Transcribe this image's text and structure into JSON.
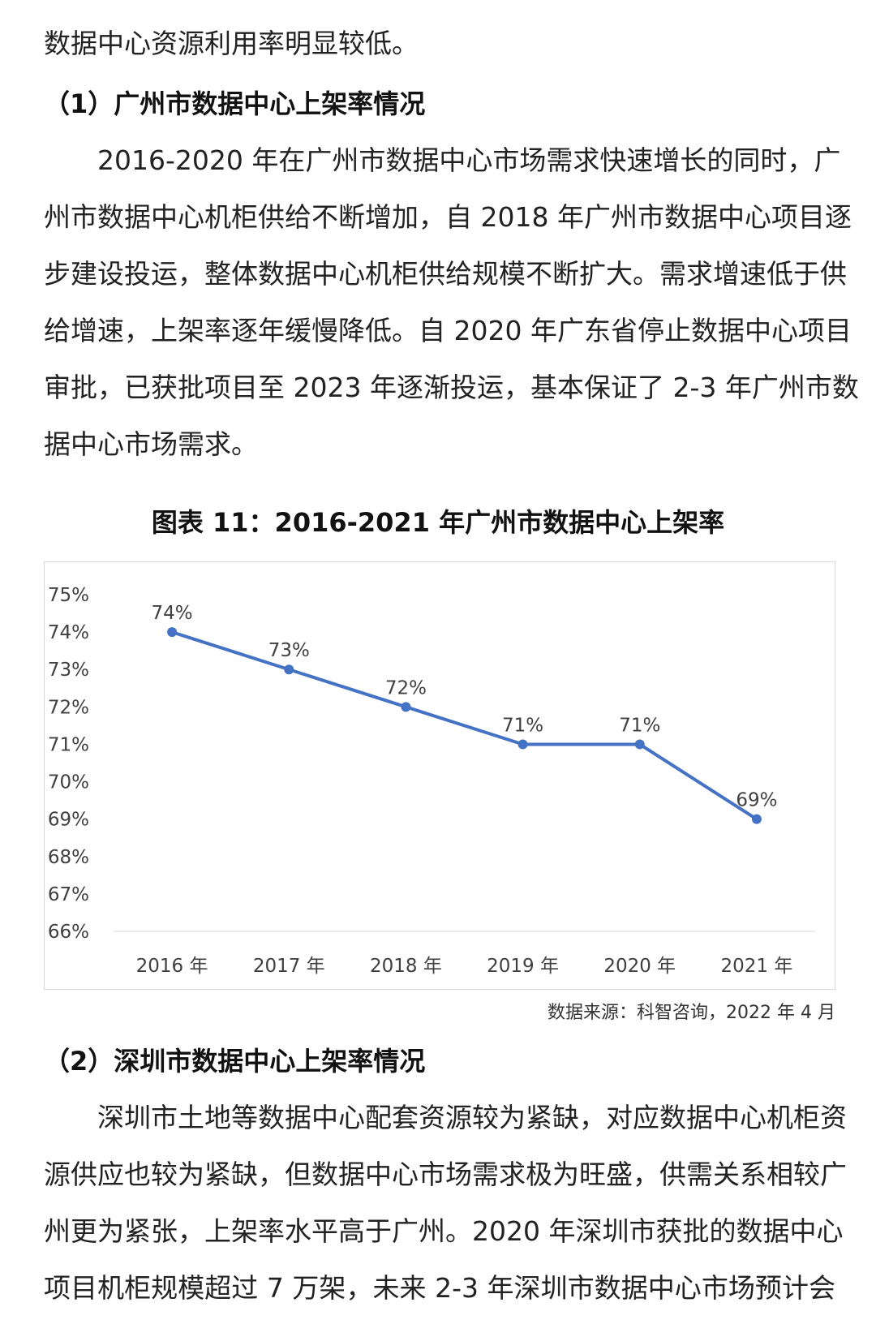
{
  "paragraphs": {
    "p0": [
      "数据中心资源利用率明显较低。"
    ],
    "h1": "（1）广州市数据中心上架率情况",
    "p1": [
      "　　2016-2020 年在广州市数据中心市场需求快速增长的同时，广",
      "州市数据中心机柜供给不断增加，自 2018 年广州市数据中心项目逐",
      "步建设投运，整体数据中心机柜供给规模不断扩大。需求增速低于供",
      "给增速，上架率逐年缓慢降低。自 2020 年广东省停止数据中心项目",
      "审批，已获批项目至 2023 年逐渐投运，基本保证了 2-3 年广州市数",
      "据中心市场需求。"
    ],
    "h2": "（2）深圳市数据中心上架率情况",
    "p2": [
      "　　深圳市土地等数据中心配套资源较为紧缺，对应数据中心机柜资",
      "源供应也较为紧缺，但数据中心市场需求极为旺盛，供需关系相较广",
      "州更为紧张，上架率水平高于广州。2020 年深圳市获批的数据中心",
      "项目机柜规模超过 7 万架，未来 2-3 年深圳市数据中心市场预计会"
    ]
  },
  "chart_title": "图表 11：2016-2021 年广州市数据中心上架率",
  "source_note": "数据来源：科智咨询，2022 年 4 月",
  "chart_data": {
    "type": "line",
    "title": "图表 11：2016-2021 年广州市数据中心上架率",
    "categories": [
      "2016 年",
      "2017 年",
      "2018 年",
      "2019 年",
      "2020 年",
      "2021 年"
    ],
    "series": [
      {
        "values": [
          74,
          73,
          72,
          71,
          71,
          69
        ],
        "labels": [
          "74%",
          "73%",
          "72%",
          "71%",
          "71%",
          "69%"
        ]
      }
    ],
    "y_ticks": [
      "75%",
      "74%",
      "73%",
      "72%",
      "71%",
      "70%",
      "69%",
      "68%",
      "67%",
      "66%"
    ],
    "ylim": [
      66,
      75
    ],
    "color": "#4472c4",
    "grid": false,
    "legend": "none"
  }
}
